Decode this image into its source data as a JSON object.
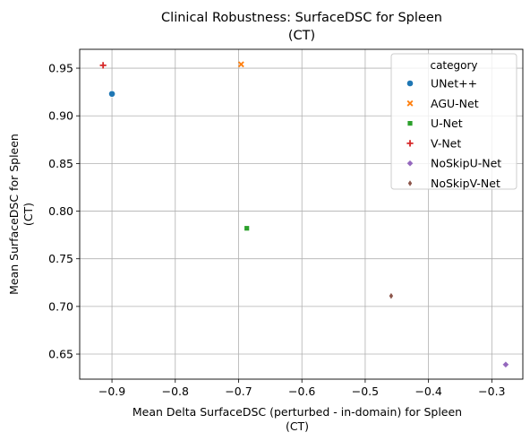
{
  "chart_data": {
    "type": "scatter",
    "title": [
      "Clinical Robustness: SurfaceDSC for Spleen",
      "(CT)"
    ],
    "xlabel": [
      "Mean Delta SurfaceDSC (perturbed - in-domain) for Spleen",
      "(CT)"
    ],
    "ylabel": [
      "Mean SurfaceDSC for Spleen",
      "(CT)"
    ],
    "xlim": [
      -0.951,
      -0.251
    ],
    "ylim": [
      0.6237,
      0.9698
    ],
    "xticks": [
      -0.9,
      -0.8,
      -0.7,
      -0.6,
      -0.5,
      -0.4,
      -0.3
    ],
    "xtick_labels": [
      "−0.9",
      "−0.8",
      "−0.7",
      "−0.6",
      "−0.5",
      "−0.4",
      "−0.3"
    ],
    "yticks": [
      0.65,
      0.7,
      0.75,
      0.8,
      0.85,
      0.9,
      0.95
    ],
    "ytick_labels": [
      "0.65",
      "0.70",
      "0.75",
      "0.80",
      "0.85",
      "0.90",
      "0.95"
    ],
    "grid": true,
    "legend": {
      "title": "category",
      "placement": "top-right"
    },
    "series": [
      {
        "name": "UNet++",
        "marker": "circle",
        "color": "#1f77b4",
        "x": -0.9,
        "y": 0.923
      },
      {
        "name": "AGU-Net",
        "marker": "x",
        "color": "#ff7f0e",
        "x": -0.696,
        "y": 0.954
      },
      {
        "name": "U-Net",
        "marker": "square",
        "color": "#2ca02c",
        "x": -0.687,
        "y": 0.782
      },
      {
        "name": "V-Net",
        "marker": "plus",
        "color": "#d62728",
        "x": -0.914,
        "y": 0.953
      },
      {
        "name": "NoSkipU-Net",
        "marker": "diamond",
        "color": "#9467bd",
        "x": -0.278,
        "y": 0.639
      },
      {
        "name": "NoSkipV-Net",
        "marker": "thin-diamond",
        "color": "#8c564b",
        "x": -0.459,
        "y": 0.711
      }
    ]
  }
}
